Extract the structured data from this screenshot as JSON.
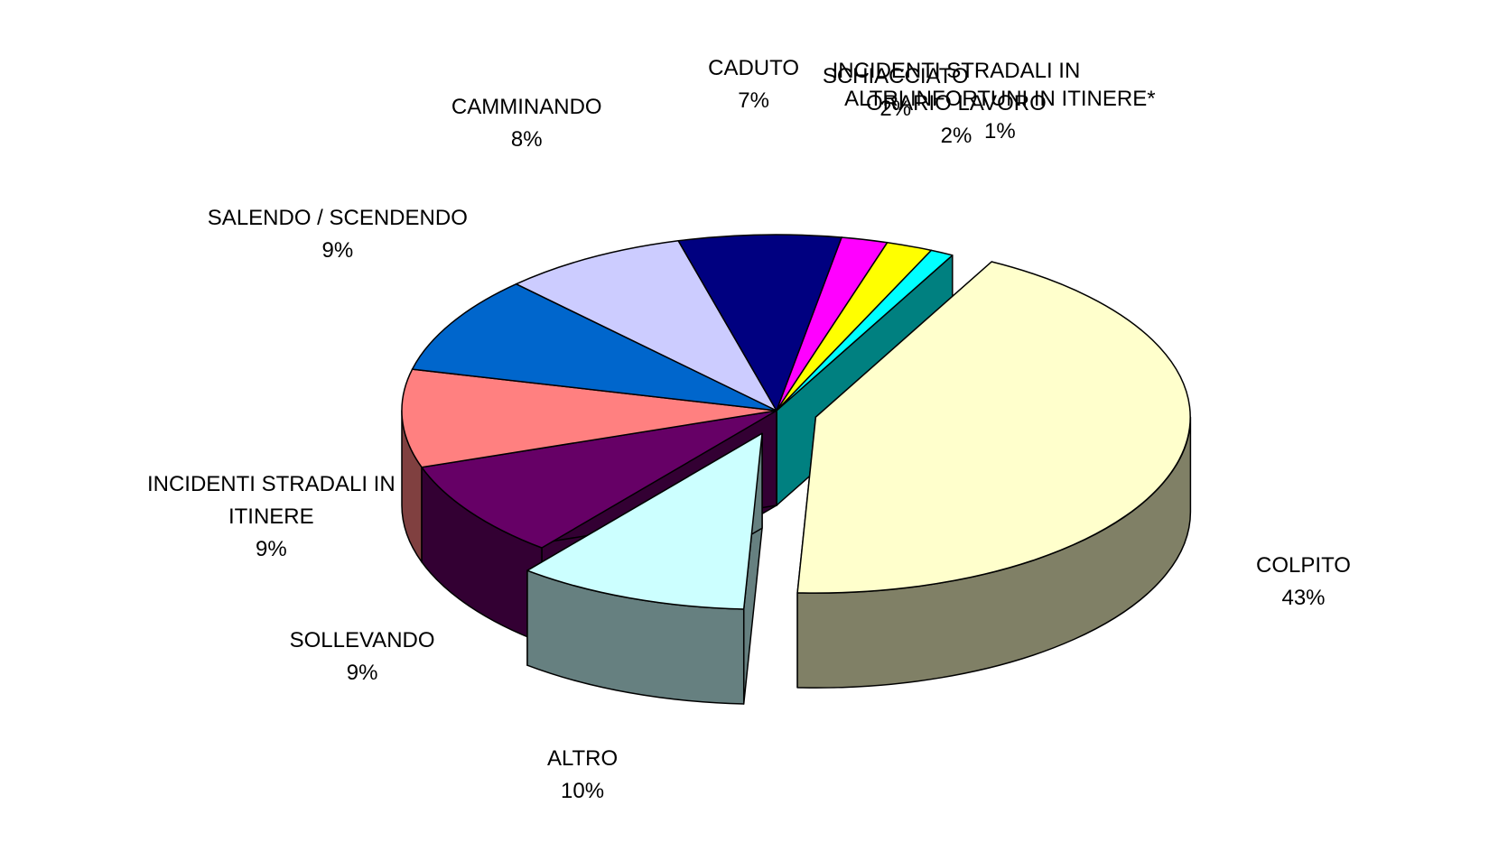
{
  "chart_data": {
    "type": "pie",
    "categories": [
      "COLPITO",
      "ALTRO",
      "SOLLEVANDO",
      "INCIDENTI STRADALI IN ITINERE",
      "SALENDO / SCENDENDO",
      "CAMMINANDO",
      "CADUTO",
      "SCHIACCIATO",
      "INCIDENTI STRADALI IN ORARIO LAVORO",
      "ALTRI INFORTUNI IN ITINERE*"
    ],
    "values": [
      43,
      10,
      9,
      9,
      9,
      8,
      7,
      2,
      2,
      1
    ],
    "value_labels": [
      "43%",
      "10%",
      "9%",
      "9%",
      "9%",
      "8%",
      "7%",
      "2%",
      "2%",
      "1%"
    ],
    "colors": [
      "#FFFFCC",
      "#CCFFFF",
      "#660066",
      "#FF8080",
      "#0066CC",
      "#CCCCFF",
      "#000080",
      "#FF00FF",
      "#FFFF00",
      "#00FFFF"
    ]
  }
}
